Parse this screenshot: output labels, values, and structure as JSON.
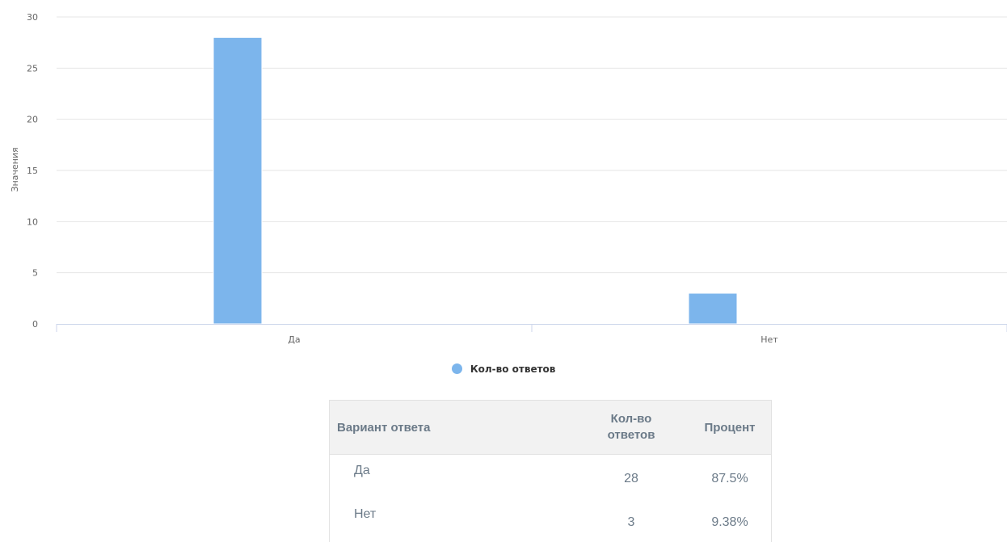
{
  "chart_data": {
    "type": "bar",
    "categories": [
      "Да",
      "Нет"
    ],
    "series": [
      {
        "name": "Кол-во ответов",
        "values": [
          28,
          3
        ]
      }
    ],
    "ylabel": "Значения",
    "xlabel": "",
    "ylim": [
      0,
      30
    ],
    "yticks": [
      0,
      5,
      10,
      15,
      20,
      25,
      30
    ],
    "grid": true,
    "legend": "bottom-center",
    "color": "#7cb5ec"
  },
  "legend": {
    "label": "Кол-во ответов",
    "color": "#7cb5ec"
  },
  "table": {
    "headers": {
      "answer": "Вариант ответа",
      "count": "Кол-во ответов",
      "percent": "Процент"
    },
    "rows": [
      {
        "answer": "Да",
        "count": "28",
        "percent": "87.5%"
      },
      {
        "answer": "Нет",
        "count": "3",
        "percent": "9.38%"
      }
    ]
  }
}
